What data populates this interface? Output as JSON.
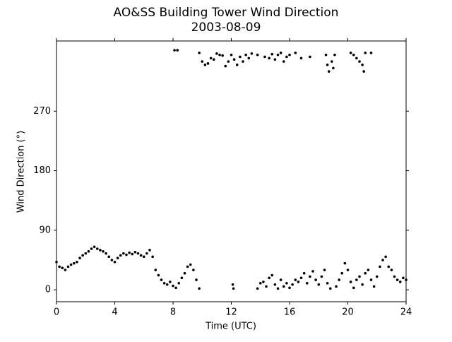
{
  "chart_data": {
    "type": "scatter",
    "title": "AO&SS Building Tower Wind Direction",
    "subtitle": "2003-08-09",
    "x_label": "Time (UTC)",
    "y_label": "Wind Direction (°)",
    "color": "#000000",
    "xlim": [
      0,
      24
    ],
    "xticks": [
      0,
      4,
      8,
      12,
      16,
      20,
      24
    ],
    "ylim": [
      -18,
      376
    ],
    "yticks": [
      0,
      90,
      180,
      270
    ],
    "x": [
      0.0,
      0.2,
      0.4,
      0.6,
      0.8,
      1.0,
      1.2,
      1.4,
      1.6,
      1.8,
      2.0,
      2.2,
      2.4,
      2.6,
      2.8,
      3.0,
      3.2,
      3.4,
      3.6,
      3.8,
      4.0,
      4.2,
      4.4,
      4.6,
      4.8,
      5.0,
      5.2,
      5.4,
      5.6,
      5.8,
      6.0,
      6.2,
      6.4,
      6.6,
      6.8,
      7.0,
      7.2,
      7.4,
      7.6,
      7.8,
      8.0,
      8.2,
      8.4,
      8.6,
      8.8,
      9.0,
      9.2,
      9.4,
      9.6,
      9.8,
      8.1,
      8.3,
      9.8,
      10.0,
      10.2,
      10.4,
      10.6,
      10.8,
      11.0,
      11.2,
      11.4,
      11.6,
      11.8,
      12.0,
      12.2,
      12.4,
      12.6,
      12.8,
      13.0,
      13.2,
      13.4,
      13.8,
      14.3,
      14.6,
      14.8,
      15.0,
      15.2,
      15.4,
      15.6,
      15.8,
      16.0,
      16.4,
      16.8,
      17.4,
      18.5,
      18.6,
      18.7,
      18.9,
      19.0,
      19.1,
      20.2,
      20.4,
      20.6,
      20.8,
      21.0,
      21.1,
      21.2,
      21.6,
      12.1,
      12.15,
      13.8,
      14.0,
      14.2,
      14.4,
      14.6,
      14.8,
      15.0,
      15.2,
      15.4,
      15.6,
      15.8,
      16.0,
      16.2,
      16.4,
      16.6,
      16.8,
      17.0,
      17.2,
      17.4,
      17.6,
      17.8,
      18.0,
      18.2,
      18.4,
      18.6,
      18.8,
      19.2,
      19.4,
      19.6,
      19.8,
      20.0,
      20.2,
      20.4,
      20.6,
      20.8,
      21.0,
      21.2,
      21.4,
      21.6,
      21.8,
      22.0,
      22.2,
      22.4,
      22.6,
      22.8,
      23.0,
      23.2,
      23.4,
      23.6,
      23.8,
      24.0
    ],
    "values": [
      42,
      35,
      33,
      30,
      35,
      38,
      40,
      42,
      48,
      52,
      55,
      58,
      62,
      65,
      62,
      60,
      58,
      55,
      50,
      45,
      42,
      48,
      52,
      55,
      53,
      56,
      54,
      57,
      55,
      52,
      50,
      55,
      60,
      50,
      30,
      22,
      15,
      10,
      8,
      12,
      6,
      3,
      10,
      18,
      25,
      35,
      38,
      30,
      15,
      2,
      362,
      362,
      358,
      345,
      340,
      342,
      350,
      348,
      357,
      355,
      354,
      338,
      345,
      355,
      348,
      340,
      352,
      345,
      355,
      350,
      357,
      355,
      352,
      350,
      356,
      348,
      355,
      358,
      345,
      352,
      355,
      358,
      350,
      352,
      355,
      340,
      330,
      345,
      335,
      355,
      358,
      355,
      350,
      345,
      340,
      330,
      358,
      358,
      8,
      2,
      2,
      10,
      12,
      5,
      18,
      22,
      8,
      2,
      15,
      5,
      10,
      3,
      8,
      15,
      12,
      18,
      25,
      10,
      20,
      28,
      15,
      8,
      20,
      30,
      10,
      2,
      5,
      15,
      25,
      40,
      30,
      12,
      3,
      15,
      20,
      8,
      25,
      30,
      15,
      5,
      20,
      35,
      45,
      50,
      35,
      30,
      20,
      15,
      12,
      18,
      15
    ]
  }
}
